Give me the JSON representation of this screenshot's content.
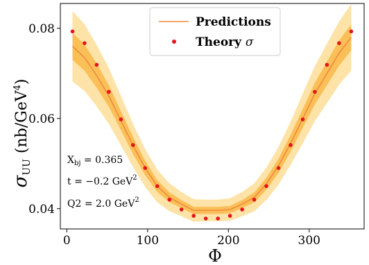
{
  "chart_data": {
    "type": "line",
    "xlabel": "Φ",
    "ylabel_main": "σ",
    "ylabel_sub": "UU",
    "ylabel_units": "(nb/GeV",
    "ylabel_units_sup": "4",
    "ylabel_units_close": ")",
    "xlim": [
      -8,
      368
    ],
    "ylim": [
      0.0355,
      0.0855
    ],
    "xticks": [
      0,
      100,
      200,
      300
    ],
    "yticks": [
      0.04,
      0.06,
      0.08
    ],
    "ytick_labels": [
      "0.04",
      "0.06",
      "0.08"
    ],
    "grid": false,
    "legend_position": "top-center",
    "colors": {
      "prediction_line": "#f08a3c",
      "band_inner": "#fbbf58",
      "band_outer": "#fde3a7",
      "theory_points": "#e3151a",
      "legend_border": "#cccccc"
    },
    "series": [
      {
        "name": "Predictions",
        "kind": "line_with_bands",
        "x": [
          7,
          22,
          37,
          52,
          67,
          82,
          97,
          112,
          127,
          142,
          157,
          172,
          187,
          202,
          217,
          232,
          247,
          262,
          277,
          292,
          307,
          322,
          337,
          352
        ],
        "y": [
          0.076,
          0.0735,
          0.0695,
          0.065,
          0.0595,
          0.054,
          0.049,
          0.045,
          0.0425,
          0.041,
          0.0396,
          0.0396,
          0.0396,
          0.0398,
          0.041,
          0.0425,
          0.0455,
          0.0495,
          0.0545,
          0.06,
          0.0655,
          0.07,
          0.0745,
          0.078
        ],
        "inner_band_halfwidth": [
          0.003,
          0.0029,
          0.0027,
          0.0024,
          0.0021,
          0.0019,
          0.0016,
          0.0013,
          0.0011,
          0.0009,
          0.0008,
          0.0008,
          0.0008,
          0.0008,
          0.0009,
          0.0011,
          0.0013,
          0.0016,
          0.0019,
          0.0021,
          0.0024,
          0.0026,
          0.0028,
          0.0029
        ],
        "outer_band_halfwidth": [
          0.0078,
          0.0074,
          0.0068,
          0.0062,
          0.0055,
          0.0048,
          0.0042,
          0.0036,
          0.0031,
          0.0027,
          0.0025,
          0.0024,
          0.0024,
          0.0025,
          0.0027,
          0.0031,
          0.0036,
          0.0042,
          0.0048,
          0.0055,
          0.0061,
          0.0066,
          0.007,
          0.0074
        ]
      },
      {
        "name": "Theory σ",
        "kind": "scatter",
        "x": [
          7,
          22,
          37,
          52,
          67,
          82,
          97,
          112,
          127,
          142,
          157,
          172,
          187,
          202,
          217,
          232,
          247,
          262,
          277,
          292,
          307,
          322,
          337,
          352
        ],
        "y": [
          0.0793,
          0.0767,
          0.0719,
          0.0659,
          0.0598,
          0.0541,
          0.049,
          0.045,
          0.042,
          0.0398,
          0.0384,
          0.0378,
          0.0378,
          0.0384,
          0.0398,
          0.042,
          0.045,
          0.049,
          0.0541,
          0.0598,
          0.0659,
          0.0719,
          0.0767,
          0.0793
        ]
      }
    ],
    "legend": {
      "line_label": "Predictions",
      "marker_label_text": "Theory ",
      "marker_label_symbol": "σ"
    },
    "annotations": {
      "xbj_label": "X",
      "xbj_sub": "bj",
      "xbj_value": " = 0.365",
      "t_label": "t = −0.2 GeV",
      "t_sup": "2",
      "q2_label": "Q2 = 2.0 GeV",
      "q2_sup": "2"
    }
  }
}
